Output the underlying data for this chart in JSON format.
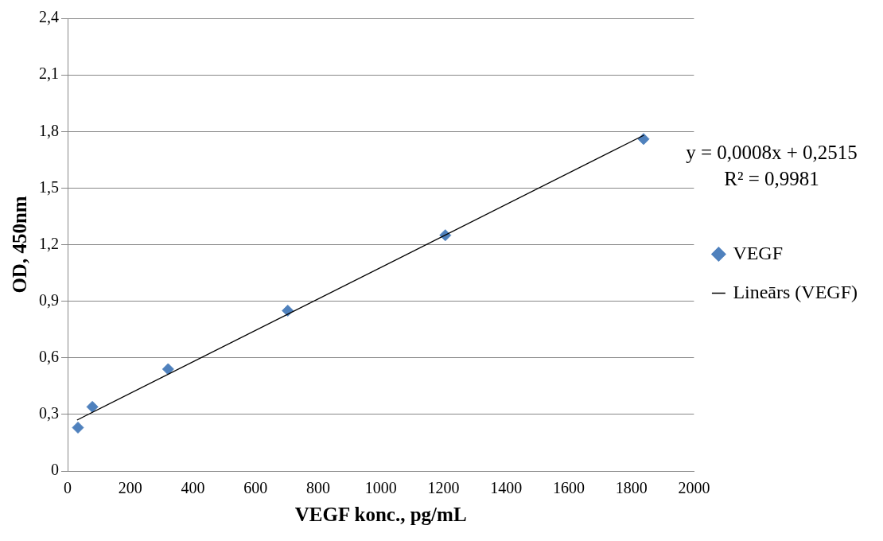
{
  "chart_data": {
    "type": "scatter",
    "xlabel": "VEGF konc., pg/mL",
    "ylabel": "OD, 450nm",
    "series": [
      {
        "name": "VEGF",
        "type": "scatter",
        "color": "#4f81bd",
        "marker": "diamond",
        "x": [
          33,
          79,
          321,
          703,
          1206,
          1839
        ],
        "values": [
          0.23,
          0.34,
          0.54,
          0.85,
          1.25,
          1.76
        ]
      },
      {
        "name": "Lineārs (VEGF)",
        "type": "line",
        "color": "#000000",
        "marker": "none",
        "line_style": "solid",
        "x": [
          30,
          1840
        ],
        "values": [
          0.27,
          1.78
        ]
      }
    ],
    "xlim": [
      0,
      2000
    ],
    "xticks": [
      0,
      200,
      400,
      600,
      800,
      1000,
      1200,
      1400,
      1600,
      1800,
      2000
    ],
    "ylim": [
      0,
      2.4
    ],
    "yticks": [
      0,
      {
        "value": 0.3,
        "label": "0,3"
      },
      {
        "value": 0.6,
        "label": "0,6"
      },
      {
        "value": 0.9,
        "label": "0,9"
      },
      {
        "value": 1.2,
        "label": "1,2"
      },
      {
        "value": 1.5,
        "label": "1,5"
      },
      {
        "value": 1.8,
        "label": "1,8"
      },
      {
        "value": 2.1,
        "label": "2,1"
      },
      {
        "value": 2.4,
        "label": "2,4"
      }
    ],
    "grid": "y",
    "legend": "right",
    "annotations": [
      "y = 0,0008x + 0,2515\nR² = 0,9981"
    ]
  }
}
